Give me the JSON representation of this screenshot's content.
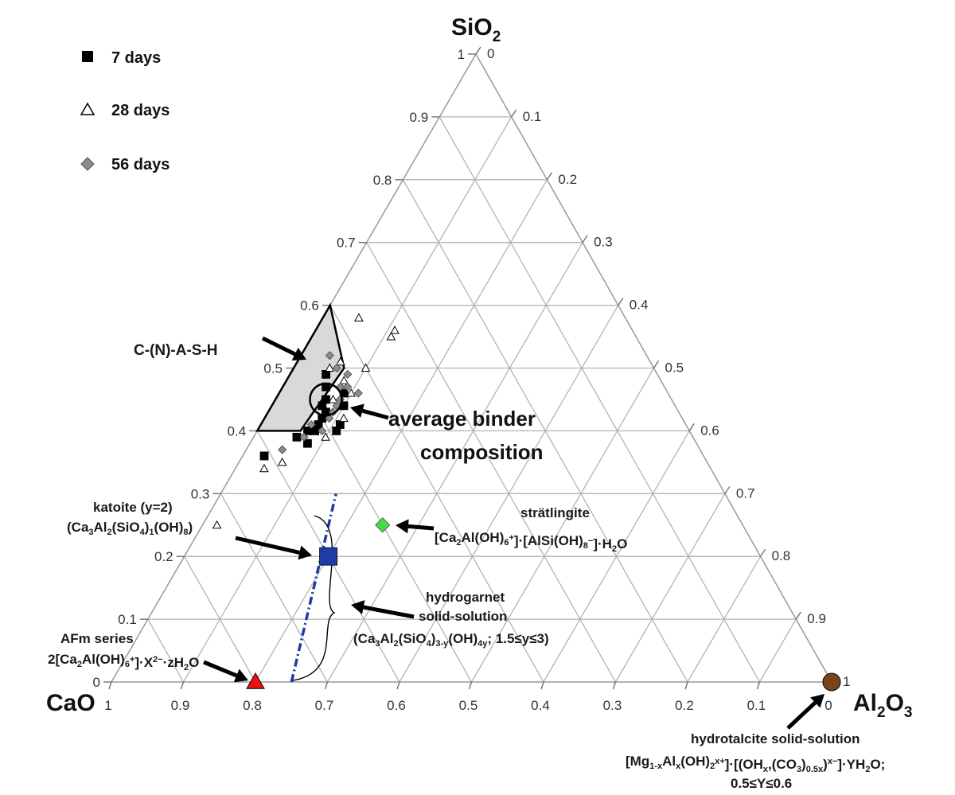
{
  "chart_data": {
    "type": "ternary-scatter",
    "vertices": {
      "top": {
        "main": "SiO",
        "sub": "2"
      },
      "left": {
        "main": "CaO",
        "sub": ""
      },
      "right": {
        "main": "Al",
        "sub": "2",
        "main2": "O",
        "sub2": "3"
      }
    },
    "tick_values": [
      "0",
      "0.1",
      "0.2",
      "0.3",
      "0.4",
      "0.5",
      "0.6",
      "0.7",
      "0.8",
      "0.9",
      "1"
    ],
    "grid": true,
    "legend": {
      "placement": "top-left",
      "entries": [
        {
          "label": "7 days",
          "marker": "square",
          "color": "#000000"
        },
        {
          "label": "28 days",
          "marker": "triangle-open",
          "color": "#ffffff"
        },
        {
          "label": "56 days",
          "marker": "diamond",
          "color": "#8c8c8c"
        }
      ]
    },
    "series": [
      {
        "name": "7 days",
        "marker": "square",
        "color": "#000000",
        "points": [
          {
            "si": 0.49,
            "ca": 0.46
          },
          {
            "si": 0.47,
            "ca": 0.47
          },
          {
            "si": 0.45,
            "ca": 0.48
          },
          {
            "si": 0.44,
            "ca": 0.49
          },
          {
            "si": 0.43,
            "ca": 0.49
          },
          {
            "si": 0.42,
            "ca": 0.5
          },
          {
            "si": 0.41,
            "ca": 0.51
          },
          {
            "si": 0.4,
            "ca": 0.53
          },
          {
            "si": 0.39,
            "ca": 0.55
          },
          {
            "si": 0.4,
            "ca": 0.52
          },
          {
            "si": 0.38,
            "ca": 0.54
          },
          {
            "si": 0.41,
            "ca": 0.48
          },
          {
            "si": 0.44,
            "ca": 0.46
          },
          {
            "si": 0.36,
            "ca": 0.61
          },
          {
            "si": 0.4,
            "ca": 0.49
          },
          {
            "si": 0.46,
            "ca": 0.45
          }
        ]
      },
      {
        "name": "28 days",
        "marker": "triangle-open",
        "color": "#ffffff",
        "points": [
          {
            "si": 0.58,
            "ca": 0.37
          },
          {
            "si": 0.56,
            "ca": 0.33
          },
          {
            "si": 0.55,
            "ca": 0.34
          },
          {
            "si": 0.51,
            "ca": 0.43
          },
          {
            "si": 0.5,
            "ca": 0.4
          },
          {
            "si": 0.48,
            "ca": 0.44
          },
          {
            "si": 0.46,
            "ca": 0.44
          },
          {
            "si": 0.42,
            "ca": 0.47
          },
          {
            "si": 0.39,
            "ca": 0.51
          },
          {
            "si": 0.35,
            "ca": 0.59
          },
          {
            "si": 0.34,
            "ca": 0.62
          },
          {
            "si": 0.25,
            "ca": 0.73
          },
          {
            "si": 0.5,
            "ca": 0.45
          },
          {
            "si": 0.45,
            "ca": 0.47
          }
        ]
      },
      {
        "name": "56 days",
        "marker": "diamond",
        "color": "#8c8c8c",
        "points": [
          {
            "si": 0.52,
            "ca": 0.44
          },
          {
            "si": 0.5,
            "ca": 0.44
          },
          {
            "si": 0.49,
            "ca": 0.43
          },
          {
            "si": 0.47,
            "ca": 0.45
          },
          {
            "si": 0.46,
            "ca": 0.43
          },
          {
            "si": 0.45,
            "ca": 0.46
          },
          {
            "si": 0.44,
            "ca": 0.47
          },
          {
            "si": 0.43,
            "ca": 0.48
          },
          {
            "si": 0.42,
            "ca": 0.49
          },
          {
            "si": 0.4,
            "ca": 0.51
          },
          {
            "si": 0.39,
            "ca": 0.54
          },
          {
            "si": 0.37,
            "ca": 0.58
          },
          {
            "si": 0.47,
            "ca": 0.44
          },
          {
            "si": 0.41,
            "ca": 0.52
          }
        ]
      }
    ],
    "phases": [
      {
        "name": "katoite (y=2)",
        "formula": "(Ca3Al2(SiO4)1(OH)8)",
        "si": 0.2,
        "ca": 0.6,
        "marker": "square",
        "color": "#1f3ba8"
      },
      {
        "name": "strätlingite",
        "formula": "[Ca2Al(OH)6+]·[AlSi(OH)8−]·H2O",
        "si": 0.25,
        "ca": 0.5,
        "marker": "diamond",
        "color": "#44dd44"
      },
      {
        "name": "AFm series",
        "formula": "2[Ca2Al(OH)6+]·X2−·zH2O",
        "si": 0.0,
        "ca": 0.8,
        "marker": "triangle",
        "color": "#ee1111"
      },
      {
        "name": "hydrotalcite solid-solution",
        "formula": "[Mg1-xAlx(OH)2x+]·[(OHx,(CO3)0.5x)x−]·YH2O; 0.5≤Y≤0.6",
        "si": 0.0,
        "ca": 0.0,
        "marker": "circle",
        "color": "#7a4418"
      }
    ],
    "regions": [
      {
        "name": "C-(N)-A-S-H",
        "polygon": [
          [
            0.6,
            0.4
          ],
          [
            0.5,
            0.43
          ],
          [
            0.4,
            0.54
          ],
          [
            0.4,
            0.6
          ]
        ],
        "fill": "#d9d9d9"
      },
      {
        "name": "average binder composition",
        "center": {
          "si": 0.45,
          "ca": 0.48
        }
      }
    ],
    "hydrogarnet_line": {
      "from": {
        "si": 0.0,
        "ca": 0.75
      },
      "to": {
        "si": 0.3,
        "ca": 0.54
      },
      "color": "#1f3ba8"
    },
    "annotations": {
      "cnash": "C-(N)-A-S-H",
      "avg_line1": "average binder",
      "avg_line2": "composition",
      "katoite_line1": "katoite (y=2)",
      "katoite_f": [
        "(Ca",
        "3",
        "Al",
        "2",
        "(SiO",
        "4",
        ")",
        "1",
        "(OH)",
        "8",
        ")"
      ],
      "strat_line1": "strätlingite",
      "strat_f": [
        "[Ca",
        "2",
        "Al(OH)",
        "6",
        "",
        "+",
        "]·[AlSi(OH)",
        "8",
        "",
        "−",
        "]·H",
        "2",
        "O"
      ],
      "hg_line1": "hydrogarnet",
      "hg_line2": "solid-solution",
      "hg_f": [
        "(Ca",
        "3",
        "Al",
        "2",
        "(SiO",
        "4",
        ")",
        "3-y",
        "(OH)",
        "4y",
        "; 1.5≤y≤3)"
      ],
      "afm_line1": "AFm series",
      "afm_f": [
        "2[Ca",
        "2",
        "Al(OH)",
        "6",
        "",
        "+",
        "]·X",
        "",
        "",
        "2−",
        "·zH",
        "2",
        "O"
      ],
      "ht_line1": "hydrotalcite solid-solution",
      "ht_f": [
        "[Mg",
        "1-x",
        "Al",
        "x",
        "(OH)",
        "2",
        "",
        "x+",
        "]·[(OH",
        "x",
        ",(CO",
        "3",
        ")",
        "0.5x",
        ")",
        "",
        "",
        "x−",
        "]·YH",
        "2",
        "O;"
      ],
      "ht_line3": "0.5≤Y≤0.6"
    }
  }
}
